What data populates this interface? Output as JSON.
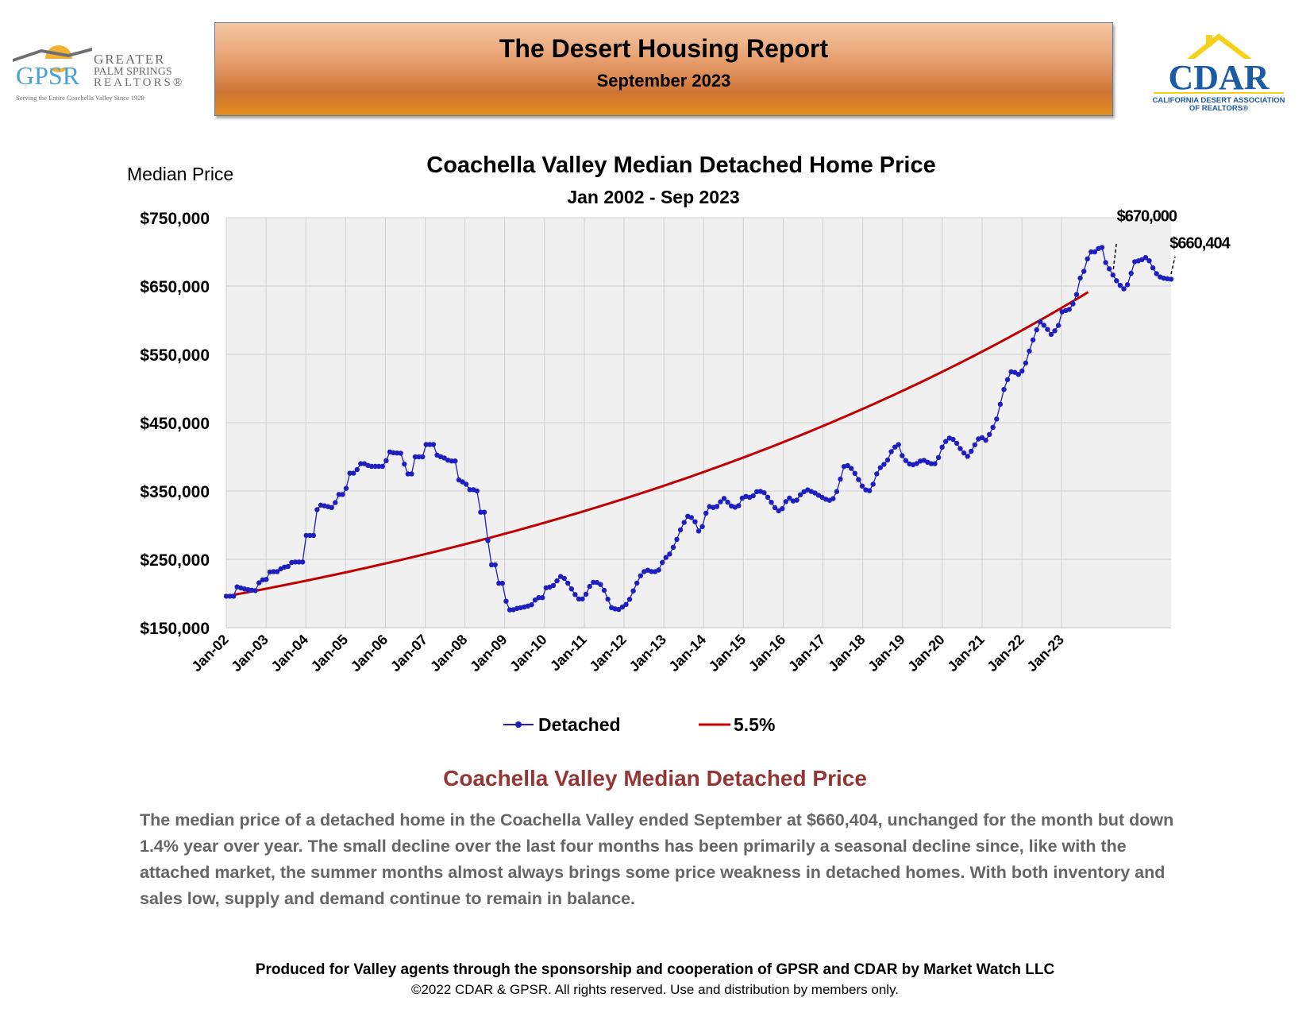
{
  "header": {
    "title": "The Desert Housing Report",
    "subtitle": "September 2023"
  },
  "logos": {
    "gpsr": {
      "abbr": "GPSR",
      "line1": "GREATER",
      "line2": "PALM SPRINGS",
      "line3": "REALTORS®",
      "tagline": "Serving the Entire Coachella Valley Since 1929"
    },
    "cdar": {
      "abbr": "CDAR",
      "line1": "CALIFORNIA DESERT ASSOCIATION",
      "line2": "OF REALTORS®"
    }
  },
  "colors": {
    "detached": "#1f1fbf",
    "trend": "#c00000",
    "analysis_title": "#943634",
    "gpsr_blue": "#4aa3d8",
    "gpsr_sun": "#f2b233",
    "cdar_blue": "#1b5aa6",
    "cdar_yellow": "#f7d117"
  },
  "chart_data": {
    "type": "line",
    "title": "Coachella Valley Median Detached Home Price",
    "subtitle": "Jan 2002 - Sep 2023",
    "ylabel": "Median Price",
    "xlabel": "",
    "ylim": [
      150000,
      750000
    ],
    "yticks": [
      150000,
      250000,
      350000,
      450000,
      550000,
      650000,
      750000
    ],
    "ytick_labels": [
      "$150,000",
      "$250,000",
      "$350,000",
      "$450,000",
      "$550,000",
      "$650,000",
      "$750,000"
    ],
    "xtick_labels": [
      "Jan-02",
      "Jan-03",
      "Jan-04",
      "Jan-05",
      "Jan-06",
      "Jan-07",
      "Jan-08",
      "Jan-09",
      "Jan-10",
      "Jan-11",
      "Jan-12",
      "Jan-13",
      "Jan-14",
      "Jan-15",
      "Jan-16",
      "Jan-17",
      "Jan-18",
      "Jan-19",
      "Jan-20",
      "Jan-21",
      "Jan-22",
      "Jan-23"
    ],
    "x_start": "Jan 2002",
    "x_end": "Sep 2023",
    "grid": true,
    "legend": "bottom-center",
    "series": [
      {
        "name": "Detached",
        "style": "line-with-markers",
        "anchors": [
          [
            2002.0,
            196000
          ],
          [
            2002.2,
            196000
          ],
          [
            2002.25,
            210000
          ],
          [
            2002.5,
            206000
          ],
          [
            2002.75,
            204000
          ],
          [
            2002.85,
            220000
          ],
          [
            2003.0,
            220000
          ],
          [
            2003.1,
            232000
          ],
          [
            2003.3,
            232000
          ],
          [
            2003.4,
            238000
          ],
          [
            2003.6,
            240000
          ],
          [
            2003.65,
            246000
          ],
          [
            2003.95,
            246000
          ],
          [
            2004.0,
            285000
          ],
          [
            2004.2,
            285000
          ],
          [
            2004.3,
            330000
          ],
          [
            2004.5,
            328000
          ],
          [
            2004.7,
            325000
          ],
          [
            2004.8,
            345000
          ],
          [
            2005.0,
            345000
          ],
          [
            2005.05,
            376000
          ],
          [
            2005.25,
            376000
          ],
          [
            2005.35,
            390000
          ],
          [
            2005.5,
            390000
          ],
          [
            2005.6,
            386000
          ],
          [
            2006.0,
            386000
          ],
          [
            2006.05,
            408000
          ],
          [
            2006.2,
            406000
          ],
          [
            2006.45,
            405000
          ],
          [
            2006.5,
            375000
          ],
          [
            2006.7,
            375000
          ],
          [
            2006.75,
            400000
          ],
          [
            2006.95,
            400000
          ],
          [
            2007.0,
            418000
          ],
          [
            2007.25,
            418000
          ],
          [
            2007.3,
            402000
          ],
          [
            2007.5,
            398000
          ],
          [
            2007.6,
            394000
          ],
          [
            2007.8,
            394000
          ],
          [
            2007.85,
            364000
          ],
          [
            2008.0,
            363000
          ],
          [
            2008.1,
            352000
          ],
          [
            2008.3,
            352000
          ],
          [
            2008.35,
            319000
          ],
          [
            2008.55,
            319000
          ],
          [
            2008.6,
            242000
          ],
          [
            2008.8,
            242000
          ],
          [
            2008.85,
            215000
          ],
          [
            2009.0,
            215000
          ],
          [
            2009.05,
            176000
          ],
          [
            2009.2,
            176000
          ],
          [
            2009.3,
            178000
          ],
          [
            2009.55,
            181000
          ],
          [
            2009.7,
            184000
          ],
          [
            2009.8,
            194000
          ],
          [
            2009.95,
            194000
          ],
          [
            2010.0,
            208000
          ],
          [
            2010.2,
            210000
          ],
          [
            2010.4,
            225000
          ],
          [
            2010.5,
            222000
          ],
          [
            2010.6,
            214000
          ],
          [
            2010.75,
            200000
          ],
          [
            2010.85,
            192000
          ],
          [
            2011.0,
            192000
          ],
          [
            2011.1,
            208000
          ],
          [
            2011.25,
            218000
          ],
          [
            2011.4,
            214000
          ],
          [
            2011.55,
            200000
          ],
          [
            2011.65,
            180000
          ],
          [
            2011.85,
            176000
          ],
          [
            2012.0,
            182000
          ],
          [
            2012.1,
            186000
          ],
          [
            2012.2,
            200000
          ],
          [
            2012.4,
            225000
          ],
          [
            2012.55,
            235000
          ],
          [
            2012.7,
            232000
          ],
          [
            2012.85,
            232000
          ],
          [
            2013.0,
            250000
          ],
          [
            2013.15,
            258000
          ],
          [
            2013.3,
            275000
          ],
          [
            2013.45,
            298000
          ],
          [
            2013.6,
            313000
          ],
          [
            2013.75,
            310000
          ],
          [
            2013.85,
            295000
          ],
          [
            2013.9,
            288000
          ],
          [
            2014.0,
            303000
          ],
          [
            2014.1,
            328000
          ],
          [
            2014.3,
            325000
          ],
          [
            2014.5,
            340000
          ],
          [
            2014.7,
            328000
          ],
          [
            2014.85,
            325000
          ],
          [
            2015.0,
            343000
          ],
          [
            2015.2,
            340000
          ],
          [
            2015.35,
            350000
          ],
          [
            2015.5,
            349000
          ],
          [
            2015.65,
            338000
          ],
          [
            2015.8,
            325000
          ],
          [
            2015.95,
            318000
          ],
          [
            2016.0,
            330000
          ],
          [
            2016.15,
            340000
          ],
          [
            2016.3,
            333000
          ],
          [
            2016.45,
            346000
          ],
          [
            2016.6,
            352000
          ],
          [
            2016.8,
            347000
          ],
          [
            2017.0,
            340000
          ],
          [
            2017.15,
            336000
          ],
          [
            2017.3,
            340000
          ],
          [
            2017.45,
            370000
          ],
          [
            2017.55,
            390000
          ],
          [
            2017.7,
            384000
          ],
          [
            2017.85,
            372000
          ],
          [
            2017.95,
            360000
          ],
          [
            2018.05,
            352000
          ],
          [
            2018.2,
            350000
          ],
          [
            2018.35,
            375000
          ],
          [
            2018.45,
            385000
          ],
          [
            2018.6,
            392000
          ],
          [
            2018.75,
            412000
          ],
          [
            2018.9,
            418000
          ],
          [
            2019.0,
            400000
          ],
          [
            2019.15,
            390000
          ],
          [
            2019.3,
            388000
          ],
          [
            2019.5,
            396000
          ],
          [
            2019.7,
            390000
          ],
          [
            2019.85,
            390000
          ],
          [
            2020.0,
            415000
          ],
          [
            2020.15,
            428000
          ],
          [
            2020.3,
            425000
          ],
          [
            2020.5,
            408000
          ],
          [
            2020.65,
            400000
          ],
          [
            2020.8,
            416000
          ],
          [
            2020.95,
            430000
          ],
          [
            2021.1,
            424000
          ],
          [
            2021.25,
            440000
          ],
          [
            2021.4,
            460000
          ],
          [
            2021.5,
            490000
          ],
          [
            2021.6,
            508000
          ],
          [
            2021.75,
            527000
          ],
          [
            2021.9,
            520000
          ],
          [
            2022.05,
            528000
          ],
          [
            2022.15,
            548000
          ],
          [
            2022.3,
            575000
          ],
          [
            2022.45,
            598000
          ],
          [
            2022.6,
            590000
          ],
          [
            2022.75,
            578000
          ],
          [
            2022.95,
            595000
          ],
          [
            2023.0,
            612000
          ],
          [
            2023.2,
            616000
          ],
          [
            2023.35,
            630000
          ],
          [
            2023.45,
            660000
          ],
          [
            2023.55,
            670000
          ],
          [
            2023.7,
            700000
          ],
          [
            2023.85,
            700000
          ],
          [
            2024.0,
            710000
          ],
          [
            2024.1,
            685000
          ],
          [
            2024.25,
            670000
          ],
          [
            2024.35,
            660000
          ],
          [
            2024.55,
            645000
          ],
          [
            2024.7,
            655000
          ],
          [
            2024.8,
            685000
          ],
          [
            2025.0,
            688000
          ],
          [
            2025.15,
            693000
          ],
          [
            2025.35,
            670000
          ],
          [
            2025.5,
            662000
          ],
          [
            2025.75,
            660000
          ]
        ]
      },
      {
        "name": "5.5%",
        "style": "line",
        "start_value": 196000,
        "end_value": 641000
      }
    ],
    "annotations": [
      {
        "text": "$670,000",
        "x": 2024.3,
        "y": 670000
      },
      {
        "text": "$660,404",
        "x": 2025.75,
        "y": 660404
      }
    ]
  },
  "analysis": {
    "title": "Coachella Valley Median Detached Price",
    "text": "The median price of a detached home in the Coachella Valley ended September at $660,404, unchanged for the month but down 1.4% year over year. The small decline over the last four months has been primarily a seasonal decline since, like with the attached market, the summer months almost always brings some price weakness in detached homes. With both inventory and sales low, supply and demand continue to remain in balance."
  },
  "footer": {
    "credit": "Produced for Valley agents through the sponsorship and cooperation of GPSR and CDAR by Market Watch LLC",
    "copyright": "©2022 CDAR & GPSR.  All rights reserved.  Use and distribution by members only."
  }
}
